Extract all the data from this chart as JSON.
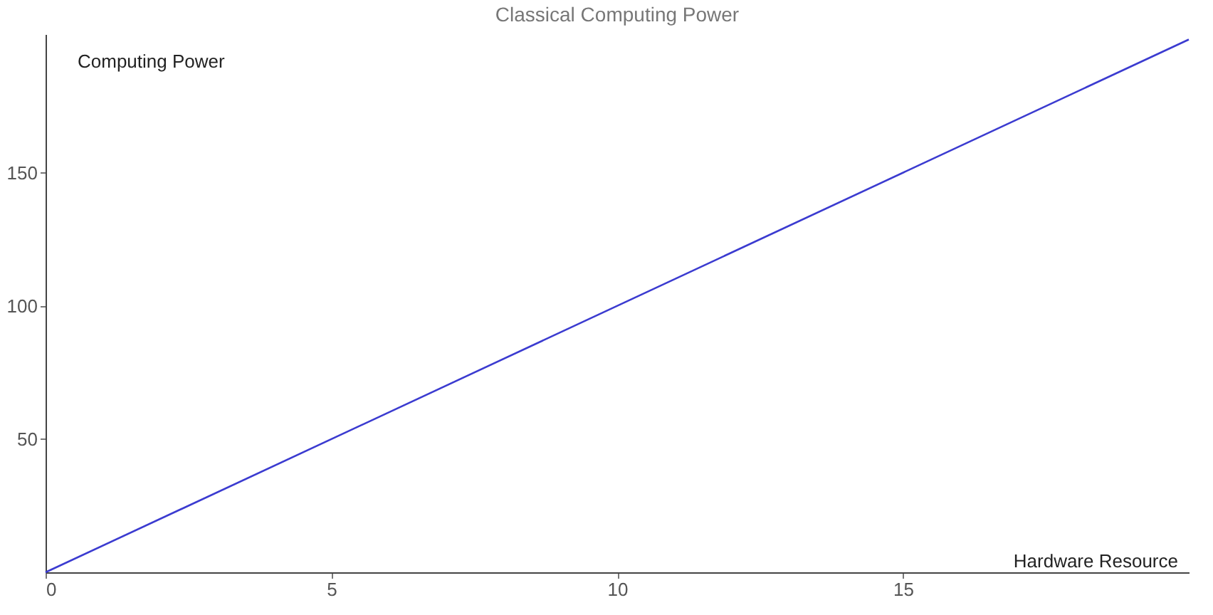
{
  "chart_data": {
    "type": "line",
    "title": "Classical Computing Power",
    "xlabel": "Hardware Resource",
    "ylabel": "Computing Power",
    "x": [
      0,
      20
    ],
    "series": [
      {
        "color": "#3b3bd0",
        "values": [
          0,
          200
        ]
      }
    ],
    "xlim": [
      0,
      20
    ],
    "ylim": [
      0,
      202
    ],
    "xticks": [
      0,
      5,
      10,
      15
    ],
    "yticks": [
      50,
      100,
      150
    ],
    "grid": false,
    "marker": "none",
    "line_style": "solid"
  }
}
